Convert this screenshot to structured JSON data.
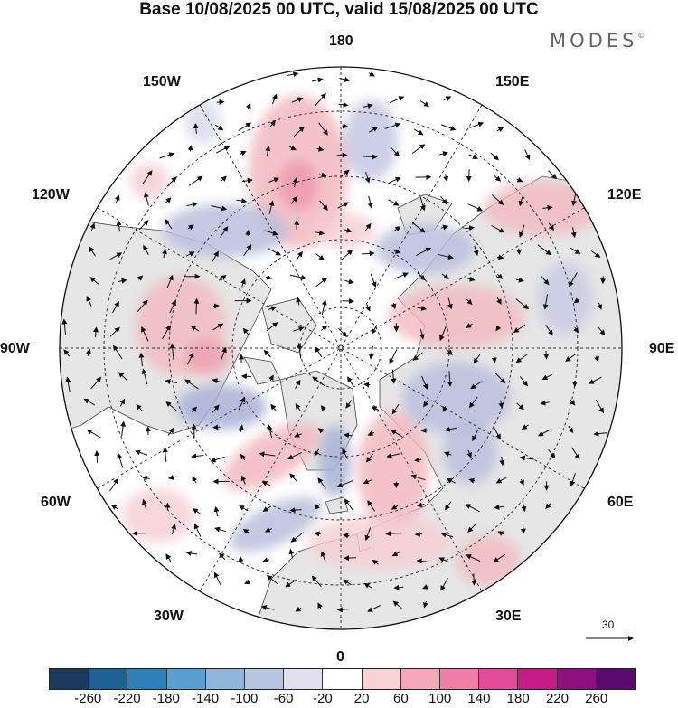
{
  "title": "Base 10/08/2025 00 UTC, valid 15/08/2025 00 UTC",
  "brand": "MODES",
  "brand_mark": "©",
  "longitude_labels": {
    "lon_180": "180",
    "lon_150E": "150E",
    "lon_120E": "120E",
    "lon_90E": "90E",
    "lon_60E": "60E",
    "lon_30E": "30E",
    "lon_0": "0",
    "lon_30W": "30W",
    "lon_60W": "60W",
    "lon_90W": "90W",
    "lon_120W": "120W",
    "lon_150W": "150W"
  },
  "reference_vector": {
    "label": "30"
  },
  "colorbar": {
    "ticks": [
      "-260",
      "-220",
      "-180",
      "-140",
      "-100",
      "-60",
      "-20",
      "20",
      "60",
      "100",
      "140",
      "180",
      "220",
      "260"
    ],
    "colors": [
      "#1b3a5c",
      "#1f5f91",
      "#2f7fb9",
      "#5a9fcf",
      "#8fb7dc",
      "#b8c6e2",
      "#e2e0ee",
      "#ffffff",
      "#f8d3d6",
      "#f4a9b8",
      "#ef7fa6",
      "#e14b98",
      "#c41b86",
      "#8d0f80",
      "#5a0a6c"
    ]
  },
  "colors": {
    "land": "#e6e6e6",
    "ocean": "#ffffff",
    "positive": "#f2b9be",
    "negative": "#b9c0dd",
    "coast": "#333333"
  }
}
